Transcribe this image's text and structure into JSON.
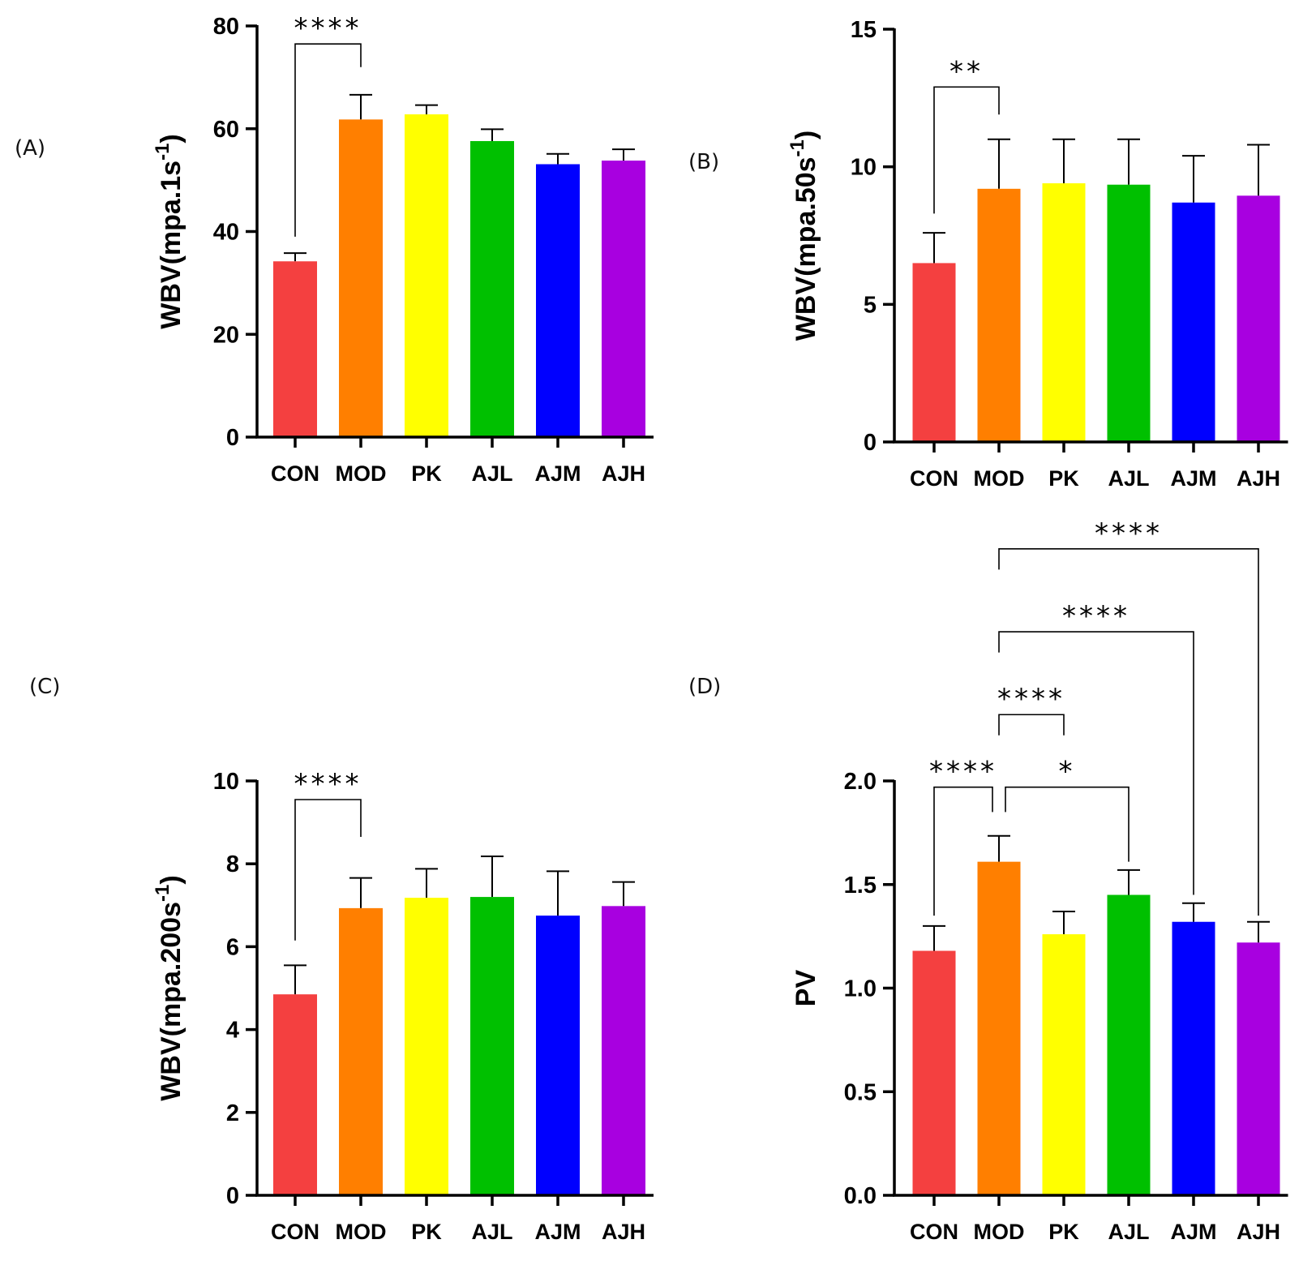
{
  "panel_labels": [
    "(A)",
    "(B)",
    "(C)",
    "(D)"
  ],
  "chart_data": [
    {
      "id": "A",
      "type": "bar",
      "ylabel": "WBV(mpa.1s",
      "ylabel_sup": "-1",
      "ylabel_close": ")",
      "categories": [
        "CON",
        "MOD",
        "PK",
        "AJL",
        "AJM",
        "AJH"
      ],
      "values": [
        34.2,
        61.8,
        62.8,
        57.6,
        53.1,
        53.8
      ],
      "errors": [
        1.6,
        4.8,
        1.8,
        2.3,
        2.0,
        2.2
      ],
      "ylim": [
        0,
        80
      ],
      "yticks": [
        "0",
        "20",
        "40",
        "60",
        "80"
      ],
      "colors": [
        "#F44040",
        "#FF7F00",
        "#FFFF00",
        "#00C000",
        "#0000FF",
        "#A800E0"
      ],
      "brackets": [
        {
          "from": 0,
          "to": 1,
          "level": 76.5,
          "label": "****",
          "left_end": 39,
          "right_end": 72
        }
      ]
    },
    {
      "id": "B",
      "type": "bar",
      "ylabel": "WBV(mpa.50s",
      "ylabel_sup": "-1",
      "ylabel_close": ")",
      "categories": [
        "CON",
        "MOD",
        "PK",
        "AJL",
        "AJM",
        "AJH"
      ],
      "values": [
        6.5,
        9.2,
        9.4,
        9.35,
        8.7,
        8.95
      ],
      "errors": [
        1.1,
        1.8,
        1.6,
        1.65,
        1.7,
        1.85
      ],
      "ylim": [
        0,
        15
      ],
      "yticks": [
        "0",
        "5",
        "10",
        "15"
      ],
      "colors": [
        "#F44040",
        "#FF7F00",
        "#FFFF00",
        "#00C000",
        "#0000FF",
        "#A800E0"
      ],
      "brackets": [
        {
          "from": 0,
          "to": 1,
          "level": 12.9,
          "label": "**",
          "left_end": 8.3,
          "right_end": 11.9
        }
      ]
    },
    {
      "id": "C",
      "type": "bar",
      "ylabel": "WBV(mpa.200s",
      "ylabel_sup": "-1",
      "ylabel_close": ")",
      "categories": [
        "CON",
        "MOD",
        "PK",
        "AJL",
        "AJM",
        "AJH"
      ],
      "values": [
        4.85,
        6.93,
        7.18,
        7.2,
        6.75,
        6.98
      ],
      "errors": [
        0.7,
        0.73,
        0.7,
        0.98,
        1.07,
        0.58
      ],
      "ylim": [
        0,
        10
      ],
      "yticks": [
        "0",
        "2",
        "4",
        "6",
        "8",
        "10"
      ],
      "colors": [
        "#F44040",
        "#FF7F00",
        "#FFFF00",
        "#00C000",
        "#0000FF",
        "#A800E0"
      ],
      "brackets": [
        {
          "from": 0,
          "to": 1,
          "level": 9.55,
          "label": "****",
          "left_end": 6.15,
          "right_end": 8.65
        }
      ]
    },
    {
      "id": "D",
      "type": "bar",
      "ylabel": "PV",
      "ylabel_sup": "",
      "ylabel_close": "",
      "categories": [
        "CON",
        "MOD",
        "PK",
        "AJL",
        "AJM",
        "AJH"
      ],
      "values": [
        1.18,
        1.61,
        1.26,
        1.45,
        1.32,
        1.22
      ],
      "errors": [
        0.12,
        0.125,
        0.11,
        0.12,
        0.09,
        0.1
      ],
      "ylim": [
        0,
        2.0
      ],
      "yticks": [
        "0.0",
        "0.5",
        "1.0",
        "1.5",
        "2.0"
      ],
      "colors": [
        "#F44040",
        "#FF7F00",
        "#FFFF00",
        "#00C000",
        "#0000FF",
        "#A800E0"
      ],
      "brackets": [
        {
          "from": 0,
          "to": 1,
          "level": 1.97,
          "label": "****",
          "left_end": 1.35,
          "right_end": 1.85,
          "right_offset": -8
        },
        {
          "from": 1,
          "to": 3,
          "level": 1.97,
          "label": "*",
          "left_end": 1.85,
          "right_end": 1.61,
          "left_offset": 8
        },
        {
          "from": 1,
          "to": 2,
          "level": 2.32,
          "label": "****",
          "left_end": 2.22,
          "right_end": 2.22
        },
        {
          "from": 1,
          "to": 4,
          "level": 2.72,
          "label": "****",
          "left_end": 2.62,
          "right_end": 1.45
        },
        {
          "from": 1,
          "to": 5,
          "level": 3.12,
          "label": "****",
          "left_end": 3.02,
          "right_end": 1.35
        }
      ]
    }
  ]
}
